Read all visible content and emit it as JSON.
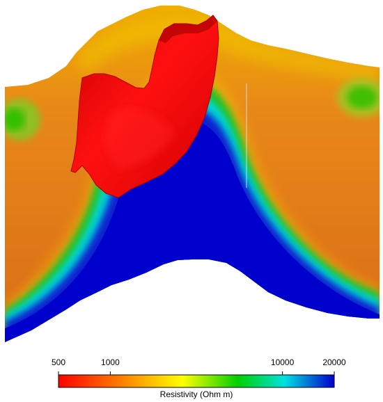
{
  "colorbar": {
    "title": "Resistivity (Ohm m)",
    "scale": "log",
    "range": [
      500,
      20000
    ],
    "ticks": [
      {
        "value": 500,
        "label": "500"
      },
      {
        "value": 1000,
        "label": "1000"
      },
      {
        "value": 10000,
        "label": "10000"
      },
      {
        "value": 20000,
        "label": "20000"
      }
    ],
    "colormap": [
      "#ff0000",
      "#ff8000",
      "#ffff00",
      "#00d000",
      "#00e0e0",
      "#0000cc"
    ]
  },
  "body": {
    "color": "#ee1111"
  }
}
